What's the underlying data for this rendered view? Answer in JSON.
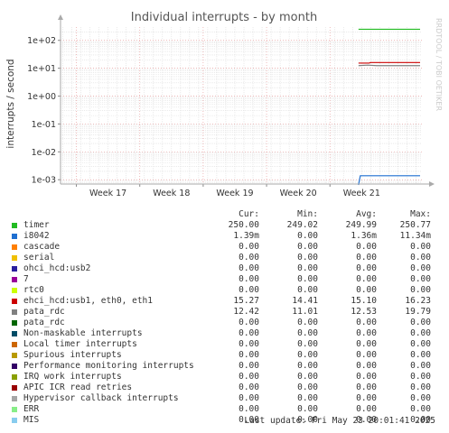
{
  "chart_data": {
    "type": "line",
    "title": "Individual interrupts - by month",
    "ylabel": "interrupts / second",
    "side_label": "RRDTOOL / TOBI OETIKER",
    "y_scale": "log",
    "ylim": [
      0.0007,
      300
    ],
    "y_ticks": [
      {
        "value": 0.001,
        "label": "1e-03"
      },
      {
        "value": 0.01,
        "label": "1e-02"
      },
      {
        "value": 0.1,
        "label": "1e-01"
      },
      {
        "value": 1,
        "label": "1e+00"
      },
      {
        "value": 10,
        "label": "1e+01"
      },
      {
        "value": 100,
        "label": "1e+02"
      }
    ],
    "x_ticks": [
      "Week 17",
      "Week 18",
      "Week 19",
      "Week 20",
      "Week 21"
    ],
    "x_range_weeks": [
      16.25,
      21.95
    ],
    "data_start_week": 20.95,
    "series": [
      {
        "name": "timer",
        "color": "#22bb22",
        "cur": "250.00",
        "min": "249.02",
        "avg": "249.99",
        "max": "250.77",
        "value": 250
      },
      {
        "name": "i8042",
        "color": "#1f6fd0",
        "cur": "1.39m",
        "min": "0.00",
        "avg": "1.36m",
        "max": "11.34m",
        "value": 0.00139,
        "drop_start": true
      },
      {
        "name": "cascade",
        "color": "#ff7f00",
        "cur": "0.00",
        "min": "0.00",
        "avg": "0.00",
        "max": "0.00"
      },
      {
        "name": "serial",
        "color": "#f0c000",
        "cur": "0.00",
        "min": "0.00",
        "avg": "0.00",
        "max": "0.00"
      },
      {
        "name": "ohci_hcd:usb2",
        "color": "#2a1f9e",
        "cur": "0.00",
        "min": "0.00",
        "avg": "0.00",
        "max": "0.00"
      },
      {
        "name": "7",
        "color": "#990099",
        "cur": "0.00",
        "min": "0.00",
        "avg": "0.00",
        "max": "0.00"
      },
      {
        "name": "rtc0",
        "color": "#ccff00",
        "cur": "0.00",
        "min": "0.00",
        "avg": "0.00",
        "max": "0.00"
      },
      {
        "name": "ehci_hcd:usb1, eth0, eth1",
        "color": "#cc0000",
        "cur": "15.27",
        "min": "14.41",
        "avg": "15.10",
        "max": "16.23",
        "value": 15.27
      },
      {
        "name": "pata_rdc",
        "color": "#808080",
        "cur": "12.42",
        "min": "11.01",
        "avg": "12.53",
        "max": "19.79",
        "value": 12.42
      },
      {
        "name": "pata_rdc",
        "color": "#006600",
        "cur": "0.00",
        "min": "0.00",
        "avg": "0.00",
        "max": "0.00"
      },
      {
        "name": "Non-maskable interrupts",
        "color": "#004c66",
        "cur": "0.00",
        "min": "0.00",
        "avg": "0.00",
        "max": "0.00"
      },
      {
        "name": "Local timer interrupts",
        "color": "#cc6600",
        "cur": "0.00",
        "min": "0.00",
        "avg": "0.00",
        "max": "0.00"
      },
      {
        "name": "Spurious interrupts",
        "color": "#b89a00",
        "cur": "0.00",
        "min": "0.00",
        "avg": "0.00",
        "max": "0.00"
      },
      {
        "name": "Performance monitoring interrupts",
        "color": "#330066",
        "cur": "0.00",
        "min": "0.00",
        "avg": "0.00",
        "max": "0.00"
      },
      {
        "name": "IRQ work interrupts",
        "color": "#8aa000",
        "cur": "0.00",
        "min": "0.00",
        "avg": "0.00",
        "max": "0.00"
      },
      {
        "name": "APIC ICR read retries",
        "color": "#990000",
        "cur": "0.00",
        "min": "0.00",
        "avg": "0.00",
        "max": "0.00"
      },
      {
        "name": "Hypervisor callback interrupts",
        "color": "#a6a6a6",
        "cur": "0.00",
        "min": "0.00",
        "avg": "0.00",
        "max": "0.00"
      },
      {
        "name": "ERR",
        "color": "#88ee88",
        "cur": "0.00",
        "min": "0.00",
        "avg": "0.00",
        "max": "0.00"
      },
      {
        "name": "MIS",
        "color": "#88ccee",
        "cur": "0.00",
        "min": "0.00",
        "avg": "0.00",
        "max": "0.00"
      }
    ],
    "grid": true
  },
  "legend_headers": {
    "cur": "Cur:",
    "min": "Min:",
    "avg": "Avg:",
    "max": "Max:"
  },
  "footer": "Last update: Fri May 23 20:01:41 2025"
}
